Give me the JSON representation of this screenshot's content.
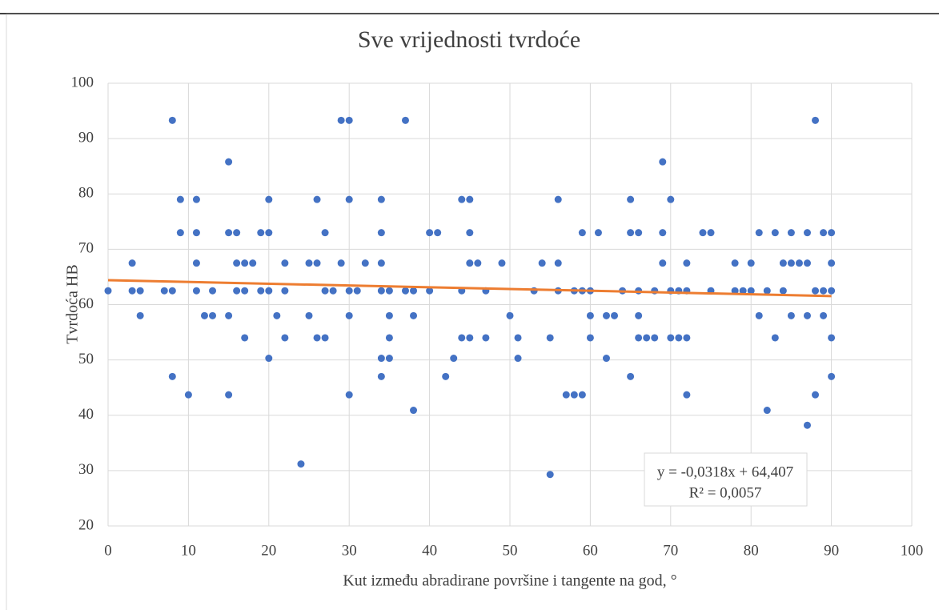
{
  "chart_data": {
    "type": "scatter",
    "title": "Sve vrijednosti tvrdoće",
    "xlabel": "Kut između abradirane površine i tangente na god, °",
    "ylabel": "Tvrdoća HB",
    "color": "#4472c4",
    "x": [
      0,
      3,
      3,
      4,
      4,
      7,
      8,
      8,
      8,
      9,
      9,
      10,
      11,
      11,
      11,
      11,
      12,
      13,
      13,
      15,
      15,
      15,
      15,
      16,
      16,
      16,
      17,
      17,
      17,
      18,
      19,
      19,
      20,
      20,
      20,
      20,
      21,
      22,
      22,
      22,
      24,
      25,
      25,
      26,
      26,
      26,
      27,
      27,
      27,
      28,
      29,
      29,
      30,
      30,
      30,
      30,
      30,
      31,
      32,
      34,
      34,
      34,
      34,
      34,
      34,
      35,
      35,
      35,
      35,
      37,
      37,
      38,
      38,
      38,
      40,
      40,
      41,
      42,
      43,
      44,
      44,
      44,
      45,
      45,
      45,
      45,
      46,
      47,
      47,
      49,
      50,
      51,
      51,
      53,
      54,
      55,
      55,
      56,
      56,
      56,
      57,
      58,
      58,
      59,
      59,
      59,
      60,
      60,
      60,
      61,
      62,
      62,
      63,
      64,
      65,
      65,
      65,
      66,
      66,
      66,
      66,
      67,
      68,
      68,
      69,
      69,
      69,
      70,
      70,
      70,
      71,
      71,
      72,
      72,
      72,
      72,
      74,
      75,
      75,
      78,
      78,
      79,
      80,
      80,
      81,
      81,
      82,
      82,
      83,
      83,
      84,
      84,
      85,
      85,
      85,
      86,
      87,
      87,
      87,
      87,
      88,
      88,
      88,
      89,
      89,
      89,
      90,
      90,
      90,
      90,
      90
    ],
    "values": [
      62.5,
      67.5,
      62.5,
      62.5,
      58,
      62.5,
      93.3,
      62.5,
      47,
      79,
      73,
      43.7,
      79,
      73,
      67.5,
      62.5,
      58,
      62.5,
      58,
      85.8,
      73,
      58,
      43.7,
      73,
      67.5,
      62.5,
      67.5,
      62.5,
      54,
      67.5,
      73,
      62.5,
      79,
      73,
      62.5,
      50.3,
      58,
      67.5,
      62.5,
      54,
      31.2,
      67.5,
      58,
      79,
      67.5,
      54,
      73,
      62.5,
      54,
      62.5,
      93.3,
      67.5,
      93.3,
      79,
      62.5,
      58,
      43.7,
      62.5,
      67.5,
      79,
      73,
      67.5,
      62.5,
      50.3,
      47,
      62.5,
      58,
      54,
      50.3,
      93.3,
      62.5,
      62.5,
      58,
      40.9,
      73,
      62.5,
      73,
      47,
      50.3,
      79,
      62.5,
      54,
      79,
      73,
      67.5,
      54,
      67.5,
      62.5,
      54,
      67.5,
      58,
      54,
      50.3,
      62.5,
      67.5,
      54,
      29.3,
      79,
      67.5,
      62.5,
      43.7,
      62.5,
      43.7,
      73,
      62.5,
      43.7,
      62.5,
      58,
      54,
      73,
      58,
      50.3,
      58,
      62.5,
      79,
      73,
      47,
      73,
      62.5,
      58,
      54,
      54,
      62.5,
      54,
      85.8,
      73,
      67.5,
      79,
      62.5,
      54,
      62.5,
      54,
      67.5,
      62.5,
      54,
      43.7,
      73,
      73,
      62.5,
      67.5,
      62.5,
      62.5,
      67.5,
      62.5,
      73,
      58,
      62.5,
      40.9,
      73,
      54,
      67.5,
      62.5,
      73,
      67.5,
      58,
      67.5,
      73,
      67.5,
      58,
      38.2,
      93.3,
      62.5,
      43.7,
      73,
      62.5,
      58,
      73,
      67.5,
      62.5,
      54,
      47
    ],
    "xlim": [
      0,
      100
    ],
    "xticks": [
      0,
      10,
      20,
      30,
      40,
      50,
      60,
      70,
      80,
      90,
      100
    ],
    "ylim": [
      20,
      100
    ],
    "yticks": [
      20,
      30,
      40,
      50,
      60,
      70,
      80,
      90,
      100
    ],
    "grid": true,
    "trendline": {
      "label": "y = -0,0318x + 64,407",
      "r2_label": "R² = 0,0057",
      "slope": -0.0318,
      "intercept": 64.407,
      "color": "#ed7d31"
    }
  }
}
